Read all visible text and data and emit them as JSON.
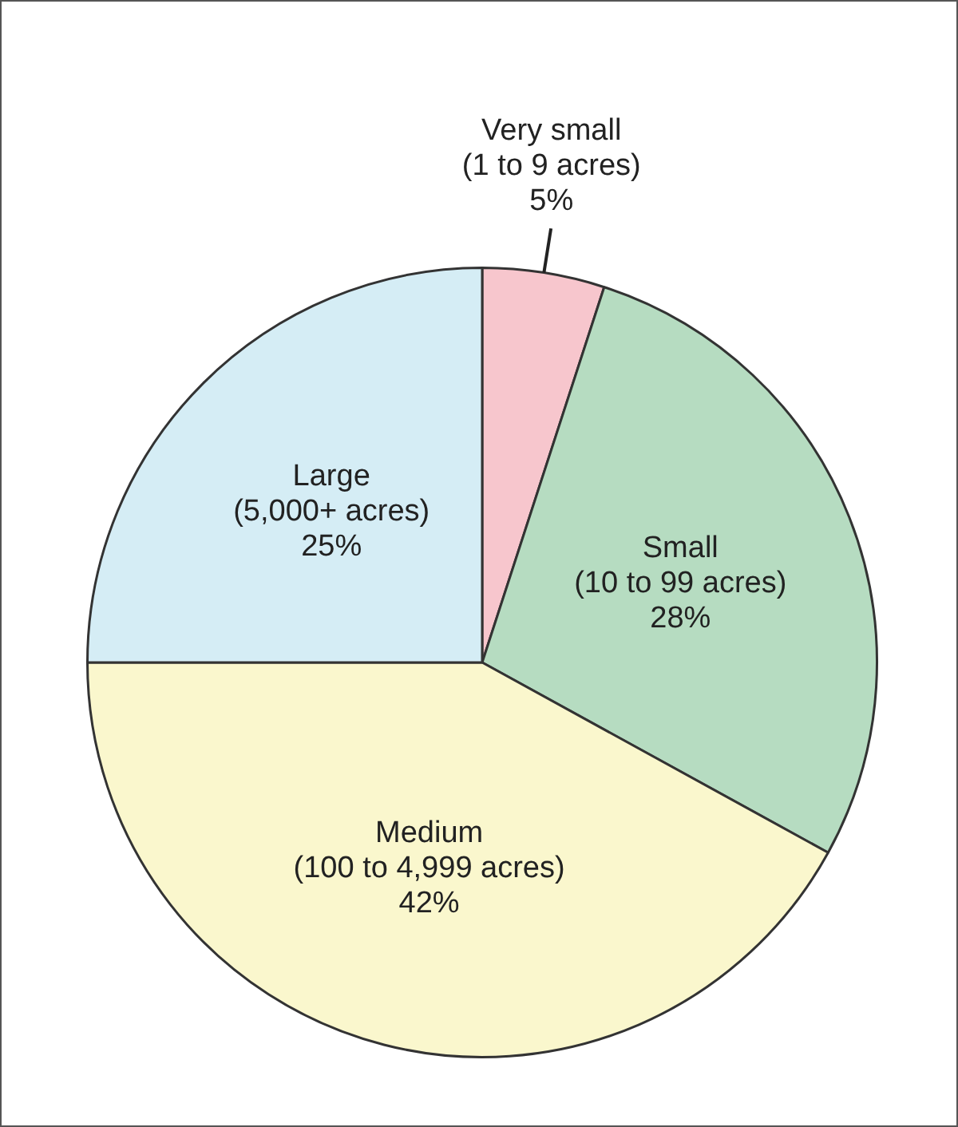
{
  "chart_data": {
    "type": "pie",
    "categories": [
      "Very small (1 to 9 acres)",
      "Small (10 to 99 acres)",
      "Medium (100 to 4,999 acres)",
      "Large (5,000+ acres)"
    ],
    "values": [
      5,
      28,
      42,
      25
    ],
    "colors": [
      "#f7c6cd",
      "#b6dcc1",
      "#faf7cd",
      "#d5edf5"
    ],
    "value_labels": [
      "5%",
      "28%",
      "42%",
      "25%"
    ],
    "legend": false
  }
}
